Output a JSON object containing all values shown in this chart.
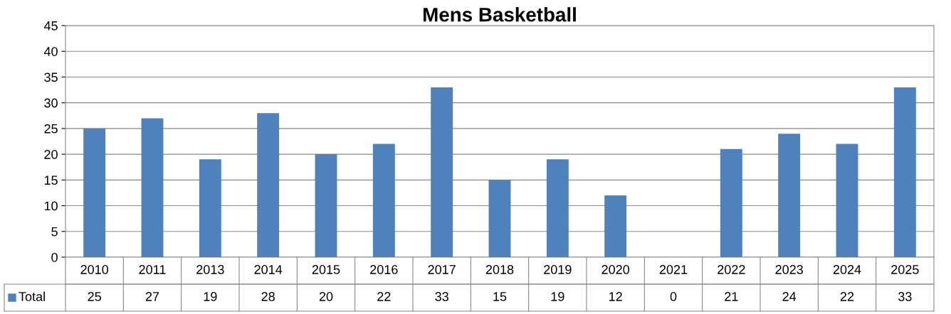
{
  "chart_data": {
    "type": "bar",
    "title": "Mens Basketball",
    "categories": [
      "2010",
      "2011",
      "2013",
      "2014",
      "2015",
      "2016",
      "2017",
      "2018",
      "2019",
      "2020",
      "2021",
      "2022",
      "2023",
      "2024",
      "2025"
    ],
    "series": [
      {
        "name": "Total",
        "color": "#4f81bd",
        "values": [
          25,
          27,
          19,
          28,
          20,
          22,
          33,
          15,
          19,
          12,
          0,
          21,
          24,
          22,
          33
        ]
      }
    ],
    "ylim": [
      0,
      45
    ],
    "yticks": [
      0,
      5,
      10,
      15,
      20,
      25,
      30,
      35,
      40,
      45
    ],
    "grid": "y",
    "data_labels": true,
    "legend": "bottom"
  }
}
